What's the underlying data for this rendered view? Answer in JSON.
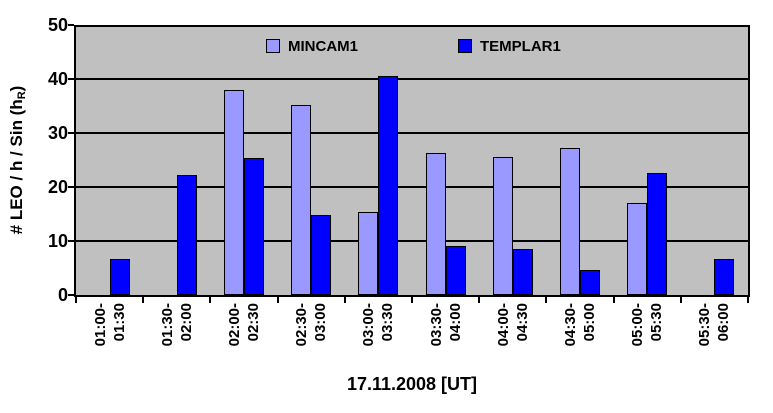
{
  "chart_data": {
    "type": "bar",
    "title": "17.11.2008 [UT]",
    "ylabel": {
      "prefix": "# LEO / h / Sin (h",
      "sub": "R",
      "suffix": ")"
    },
    "ylim": [
      0,
      50
    ],
    "yticks": [
      0,
      10,
      20,
      30,
      40,
      50
    ],
    "grid": true,
    "legend_position": "top-inside",
    "plot_bg_color": "#C0C0C0",
    "axis_color": "#000000",
    "categories": [
      {
        "line1": "01:00-",
        "line2": "01:30"
      },
      {
        "line1": "01:30-",
        "line2": "02:00"
      },
      {
        "line1": "02:00-",
        "line2": "02:30"
      },
      {
        "line1": "02:30-",
        "line2": "03:00"
      },
      {
        "line1": "03:00-",
        "line2": "03:30"
      },
      {
        "line1": "03:30-",
        "line2": "04:00"
      },
      {
        "line1": "04:00-",
        "line2": "04:30"
      },
      {
        "line1": "04:30-",
        "line2": "05:00"
      },
      {
        "line1": "05:00-",
        "line2": "05:30"
      },
      {
        "line1": "05:30-",
        "line2": "06:00"
      }
    ],
    "series": [
      {
        "name": "MINCAM1",
        "color": "#9999FF",
        "values": [
          null,
          null,
          38.0,
          35.1,
          15.3,
          26.3,
          25.5,
          27.3,
          17.0,
          null
        ]
      },
      {
        "name": "TEMPLAR1",
        "color": "#0000FF",
        "values": [
          6.7,
          22.2,
          25.4,
          14.8,
          40.6,
          9.1,
          8.5,
          4.6,
          22.6,
          6.6
        ]
      }
    ]
  }
}
